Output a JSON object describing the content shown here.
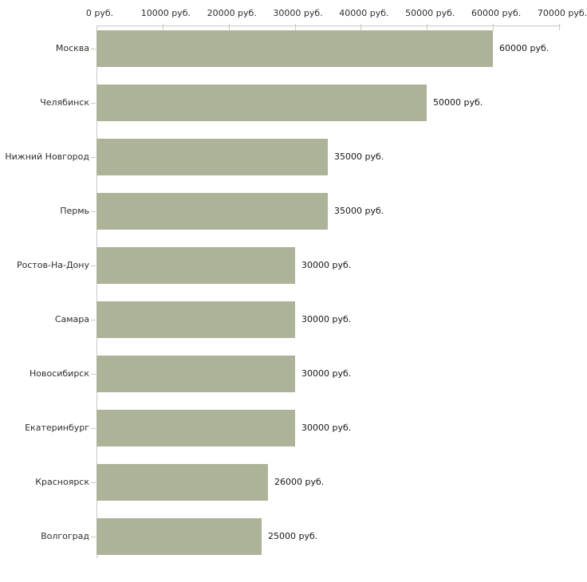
{
  "chart_data": {
    "type": "bar",
    "orientation": "horizontal",
    "title": "",
    "xlabel": "",
    "ylabel": "",
    "unit": "руб.",
    "categories": [
      "Москва",
      "Челябинск",
      "Нижний Новгород",
      "Пермь",
      "Ростов-На-Дону",
      "Самара",
      "Новосибирск",
      "Екатеринбург",
      "Красноярск",
      "Волгоград"
    ],
    "values": [
      60000,
      50000,
      35000,
      35000,
      30000,
      30000,
      30000,
      30000,
      26000,
      25000
    ],
    "value_labels": [
      "60000 руб.",
      "50000 руб.",
      "35000 руб.",
      "35000 руб.",
      "30000 руб.",
      "30000 руб.",
      "30000 руб.",
      "30000 руб.",
      "26000 руб.",
      "25000 руб."
    ],
    "xlim": [
      0,
      70000
    ],
    "x_tick_step": 10000,
    "x_tick_labels": [
      "0 руб.",
      "10000 руб.",
      "20000 руб.",
      "30000 руб.",
      "40000 руб.",
      "50000 руб.",
      "60000 руб.",
      "70000 руб."
    ],
    "grid": false,
    "legend_visible": false,
    "colors": {
      "bar": "#adb398",
      "axis_line": "#c8c8c2",
      "tick": "#c9cdb5",
      "category_text": "#2e2e2e",
      "value_text": "#161616",
      "axis_text": "#2e2e2e",
      "background": "#ffffff"
    }
  }
}
